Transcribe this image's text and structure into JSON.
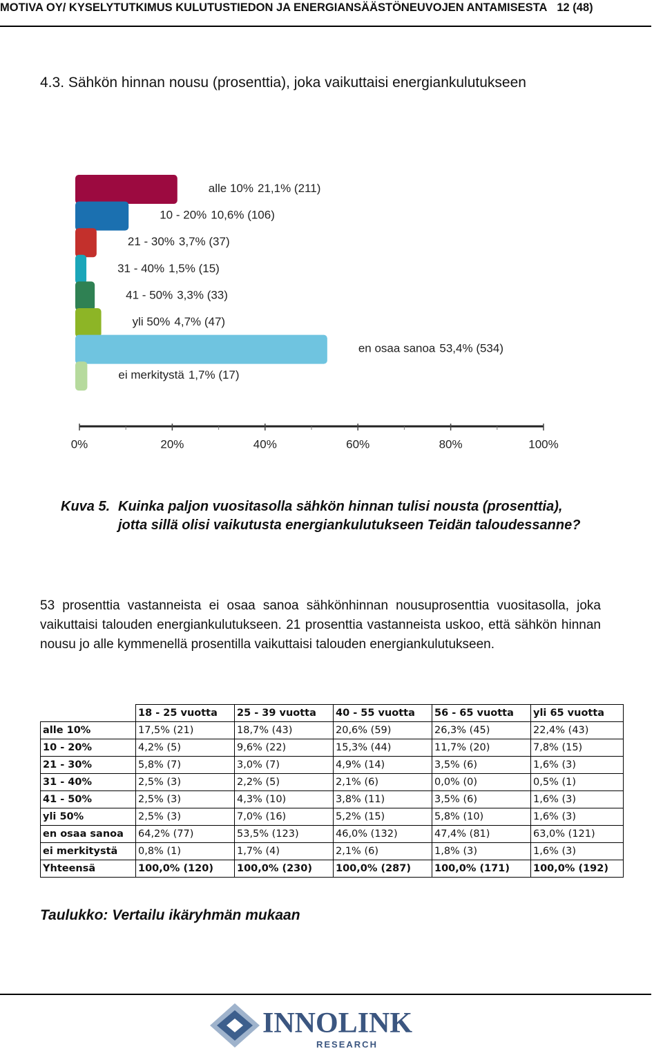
{
  "header": {
    "text": "MOTIVA OY/ KYSELYTUTKIMUS KULUTUSTIEDON JA ENERGIANSÄÄSTÖNEUVOJEN ANTAMISESTA",
    "page": "12 (48)"
  },
  "section_title": "4.3. Sähkön hinnan nousu (prosenttia), joka vaikuttaisi energiankulutukseen",
  "chart_data": {
    "type": "bar",
    "orientation": "horizontal",
    "categories": [
      "alle 10%",
      "10 - 20%",
      "21 - 30%",
      "31 - 40%",
      "41 - 50%",
      "yli 50%",
      "en osaa sanoa",
      "ei merkitystä"
    ],
    "values": [
      21.1,
      10.6,
      3.7,
      1.5,
      3.3,
      4.7,
      53.4,
      1.7
    ],
    "value_labels": [
      "21,1% (211)",
      "10,6% (106)",
      "3,7% (37)",
      "1,5% (15)",
      "3,3% (33)",
      "4,7% (47)",
      "53,4% (534)",
      "1,7% (17)"
    ],
    "colors": [
      "#9c0a40",
      "#1b70b0",
      "#c3302c",
      "#1aa6b9",
      "#2f8153",
      "#8db526",
      "#6fc4e0",
      "#b6da9d"
    ],
    "xlim": [
      0,
      100
    ],
    "xticks": [
      {
        "value": 0,
        "label": "0%"
      },
      {
        "value": 20,
        "label": "20%"
      },
      {
        "value": 40,
        "label": "40%"
      },
      {
        "value": 60,
        "label": "60%"
      },
      {
        "value": 80,
        "label": "80%"
      },
      {
        "value": 100,
        "label": "100%"
      }
    ]
  },
  "figure_caption": {
    "label": "Kuva 5.",
    "text": "Kuinka paljon vuositasolla sähkön hinnan tulisi nousta (prosenttia), jotta sillä olisi vaikutusta energiankulutukseen Teidän taloudessanne?"
  },
  "paragraph": "53 prosenttia vastanneista ei osaa sanoa sähkönhinnan nousuprosenttia vuositasolla, joka vaikuttaisi talouden energiankulutukseen. 21 prosenttia vastanneista uskoo, että sähkön hinnan nousu jo alle kymmenellä prosentilla vaikuttaisi talouden energiankulutukseen.",
  "table": {
    "columns": [
      "",
      "18 - 25 vuotta",
      "25 - 39 vuotta",
      "40 - 55 vuotta",
      "56 - 65 vuotta",
      "yli 65 vuotta"
    ],
    "rows": [
      [
        "alle 10%",
        "17,5% (21)",
        "18,7% (43)",
        "20,6% (59)",
        "26,3% (45)",
        "22,4% (43)"
      ],
      [
        "10 - 20%",
        "4,2% (5)",
        "9,6% (22)",
        "15,3% (44)",
        "11,7% (20)",
        "7,8% (15)"
      ],
      [
        "21 - 30%",
        "5,8% (7)",
        "3,0% (7)",
        "4,9% (14)",
        "3,5% (6)",
        "1,6% (3)"
      ],
      [
        "31 - 40%",
        "2,5% (3)",
        "2,2% (5)",
        "2,1% (6)",
        "0,0% (0)",
        "0,5% (1)"
      ],
      [
        "41 - 50%",
        "2,5% (3)",
        "4,3% (10)",
        "3,8% (11)",
        "3,5% (6)",
        "1,6% (3)"
      ],
      [
        "yli 50%",
        "2,5% (3)",
        "7,0% (16)",
        "5,2% (15)",
        "5,8% (10)",
        "1,6% (3)"
      ],
      [
        "en osaa sanoa",
        "64,2% (77)",
        "53,5% (123)",
        "46,0% (132)",
        "47,4% (81)",
        "63,0% (121)"
      ],
      [
        "ei merkitystä",
        "0,8% (1)",
        "1,7% (4)",
        "2,1% (6)",
        "1,8% (3)",
        "1,6% (3)"
      ],
      [
        "Yhteensä",
        "100,0% (120)",
        "100,0% (230)",
        "100,0% (287)",
        "100,0% (171)",
        "100,0% (192)"
      ]
    ]
  },
  "table_caption": "Taulukko: Vertailu ikäryhmän mukaan",
  "logo": {
    "name": "INNOLINK",
    "sub": "RESEARCH"
  }
}
